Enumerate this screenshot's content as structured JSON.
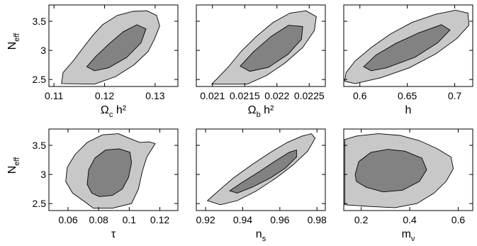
{
  "style": {
    "outer_contour_color": "#c8c8c8",
    "inner_contour_color": "#828282"
  },
  "chart_data": [
    {
      "type": "contour",
      "xlabel": {
        "base": "Ω",
        "sub": "c",
        "rest": " h²"
      },
      "ylabel": {
        "base": "N",
        "sub": "eff"
      },
      "xlim": [
        0.109,
        0.1345
      ],
      "ylim": [
        2.38,
        3.78
      ],
      "xticks": [
        {
          "v": 0.11,
          "label": "0.11"
        },
        {
          "v": 0.12,
          "label": "0.12"
        },
        {
          "v": 0.13,
          "label": "0.13"
        }
      ],
      "yticks": [
        {
          "v": 2.5,
          "label": "2.5"
        },
        {
          "v": 3.0,
          "label": "3"
        },
        {
          "v": 3.5,
          "label": "3.5"
        }
      ],
      "contour_95": [
        [
          0.1115,
          2.43
        ],
        [
          0.1118,
          2.62
        ],
        [
          0.1138,
          2.82
        ],
        [
          0.1158,
          3.05
        ],
        [
          0.1177,
          3.26
        ],
        [
          0.1196,
          3.44
        ],
        [
          0.1225,
          3.6
        ],
        [
          0.1256,
          3.67
        ],
        [
          0.1284,
          3.68
        ],
        [
          0.1303,
          3.6
        ],
        [
          0.1309,
          3.42
        ],
        [
          0.1299,
          3.2
        ],
        [
          0.1286,
          2.98
        ],
        [
          0.1258,
          2.75
        ],
        [
          0.1222,
          2.55
        ],
        [
          0.118,
          2.42
        ]
      ],
      "contour_68": [
        [
          0.1165,
          2.72
        ],
        [
          0.1183,
          2.9
        ],
        [
          0.121,
          3.12
        ],
        [
          0.1237,
          3.32
        ],
        [
          0.1264,
          3.44
        ],
        [
          0.1282,
          3.37
        ],
        [
          0.1272,
          3.13
        ],
        [
          0.1244,
          2.88
        ],
        [
          0.1208,
          2.7
        ],
        [
          0.118,
          2.65
        ]
      ]
    },
    {
      "type": "contour",
      "xlabel": {
        "base": "Ω",
        "sub": "b",
        "rest": " h²"
      },
      "ylabel": null,
      "xlim": [
        0.02075,
        0.02275
      ],
      "ylim": [
        2.38,
        3.78
      ],
      "xticks": [
        {
          "v": 0.021,
          "label": "0.021"
        },
        {
          "v": 0.0215,
          "label": "0.0215"
        },
        {
          "v": 0.022,
          "label": "0.022"
        },
        {
          "v": 0.0225,
          "label": "0.0225"
        }
      ],
      "yticks": [
        {
          "v": 2.5,
          "label": ""
        },
        {
          "v": 3.0,
          "label": ""
        },
        {
          "v": 3.5,
          "label": ""
        }
      ],
      "contour_95": [
        [
          0.02099,
          2.42
        ],
        [
          0.02125,
          2.72
        ],
        [
          0.02145,
          2.99
        ],
        [
          0.02168,
          3.24
        ],
        [
          0.02194,
          3.48
        ],
        [
          0.0222,
          3.64
        ],
        [
          0.02245,
          3.68
        ],
        [
          0.02261,
          3.58
        ],
        [
          0.02258,
          3.34
        ],
        [
          0.0224,
          3.05
        ],
        [
          0.02212,
          2.78
        ],
        [
          0.02184,
          2.57
        ],
        [
          0.02154,
          2.42
        ]
      ],
      "contour_68": [
        [
          0.02143,
          2.73
        ],
        [
          0.02164,
          2.98
        ],
        [
          0.02191,
          3.24
        ],
        [
          0.02218,
          3.43
        ],
        [
          0.0224,
          3.41
        ],
        [
          0.02238,
          3.19
        ],
        [
          0.02217,
          2.93
        ],
        [
          0.02187,
          2.71
        ],
        [
          0.02158,
          2.64
        ]
      ]
    },
    {
      "type": "contour",
      "xlabel": {
        "base": "h",
        "sub": "",
        "rest": ""
      },
      "ylabel": null,
      "xlim": [
        0.583,
        0.719
      ],
      "ylim": [
        2.38,
        3.78
      ],
      "xticks": [
        {
          "v": 0.6,
          "label": "0.6"
        },
        {
          "v": 0.65,
          "label": "0.65"
        },
        {
          "v": 0.7,
          "label": "0.7"
        }
      ],
      "yticks": [
        {
          "v": 2.5,
          "label": ""
        },
        {
          "v": 3.0,
          "label": ""
        },
        {
          "v": 3.5,
          "label": ""
        }
      ],
      "contour_95": [
        [
          0.584,
          2.47
        ],
        [
          0.5855,
          2.62
        ],
        [
          0.595,
          2.82
        ],
        [
          0.612,
          3.05
        ],
        [
          0.632,
          3.28
        ],
        [
          0.655,
          3.48
        ],
        [
          0.68,
          3.62
        ],
        [
          0.701,
          3.69
        ],
        [
          0.714,
          3.64
        ],
        [
          0.715,
          3.43
        ],
        [
          0.702,
          3.2
        ],
        [
          0.68,
          2.94
        ],
        [
          0.652,
          2.7
        ],
        [
          0.622,
          2.53
        ],
        [
          0.595,
          2.43
        ]
      ],
      "contour_68": [
        [
          0.604,
          2.72
        ],
        [
          0.617,
          2.92
        ],
        [
          0.638,
          3.12
        ],
        [
          0.662,
          3.3
        ],
        [
          0.686,
          3.44
        ],
        [
          0.695,
          3.35
        ],
        [
          0.682,
          3.13
        ],
        [
          0.658,
          2.88
        ],
        [
          0.628,
          2.7
        ],
        [
          0.612,
          2.65
        ]
      ]
    },
    {
      "type": "contour",
      "xlabel": {
        "base": "τ",
        "sub": "",
        "rest": ""
      },
      "ylabel": {
        "base": "N",
        "sub": "eff"
      },
      "xlim": [
        0.0475,
        0.1318
      ],
      "ylim": [
        2.38,
        3.78
      ],
      "xticks": [
        {
          "v": 0.06,
          "label": "0.06"
        },
        {
          "v": 0.08,
          "label": "0.08"
        },
        {
          "v": 0.1,
          "label": "0.1"
        },
        {
          "v": 0.12,
          "label": "0.12"
        }
      ],
      "yticks": [
        {
          "v": 2.5,
          "label": "2.5"
        },
        {
          "v": 3.0,
          "label": "3"
        },
        {
          "v": 3.5,
          "label": "3.5"
        }
      ],
      "contour_95": [
        [
          0.0765,
          2.42
        ],
        [
          0.0715,
          2.52
        ],
        [
          0.063,
          2.68
        ],
        [
          0.0585,
          2.88
        ],
        [
          0.0595,
          3.12
        ],
        [
          0.0645,
          3.34
        ],
        [
          0.0725,
          3.55
        ],
        [
          0.0825,
          3.68
        ],
        [
          0.093,
          3.7
        ],
        [
          0.1,
          3.62
        ],
        [
          0.107,
          3.55
        ],
        [
          0.113,
          3.56
        ],
        [
          0.117,
          3.53
        ],
        [
          0.1115,
          3.3
        ],
        [
          0.1085,
          3.05
        ],
        [
          0.106,
          2.75
        ],
        [
          0.1015,
          2.5
        ],
        [
          0.089,
          2.42
        ]
      ],
      "contour_68": [
        [
          0.0725,
          2.83
        ],
        [
          0.0735,
          3.08
        ],
        [
          0.0775,
          3.28
        ],
        [
          0.0845,
          3.42
        ],
        [
          0.0935,
          3.44
        ],
        [
          0.1005,
          3.38
        ],
        [
          0.1015,
          3.2
        ],
        [
          0.0995,
          2.95
        ],
        [
          0.0955,
          2.75
        ],
        [
          0.089,
          2.64
        ],
        [
          0.0805,
          2.62
        ],
        [
          0.0755,
          2.68
        ]
      ]
    },
    {
      "type": "contour",
      "xlabel": {
        "base": "n",
        "sub": "s",
        "rest": ""
      },
      "ylabel": null,
      "xlim": [
        0.915,
        0.9845
      ],
      "ylim": [
        2.38,
        3.78
      ],
      "xticks": [
        {
          "v": 0.92,
          "label": "0.92"
        },
        {
          "v": 0.94,
          "label": "0.94"
        },
        {
          "v": 0.96,
          "label": "0.96"
        },
        {
          "v": 0.98,
          "label": "0.98"
        }
      ],
      "yticks": [
        {
          "v": 2.5,
          "label": ""
        },
        {
          "v": 3.0,
          "label": ""
        },
        {
          "v": 3.5,
          "label": ""
        }
      ],
      "contour_95": [
        [
          0.921,
          2.55
        ],
        [
          0.927,
          2.72
        ],
        [
          0.935,
          2.94
        ],
        [
          0.945,
          3.17
        ],
        [
          0.955,
          3.38
        ],
        [
          0.964,
          3.55
        ],
        [
          0.972,
          3.66
        ],
        [
          0.977,
          3.7
        ],
        [
          0.979,
          3.62
        ],
        [
          0.975,
          3.4
        ],
        [
          0.967,
          3.16
        ],
        [
          0.958,
          2.94
        ],
        [
          0.947,
          2.71
        ],
        [
          0.937,
          2.55
        ],
        [
          0.928,
          2.48
        ]
      ],
      "contour_68": [
        [
          0.933,
          2.72
        ],
        [
          0.94,
          2.87
        ],
        [
          0.949,
          3.05
        ],
        [
          0.957,
          3.22
        ],
        [
          0.965,
          3.38
        ],
        [
          0.969,
          3.42
        ],
        [
          0.969,
          3.3
        ],
        [
          0.963,
          3.11
        ],
        [
          0.955,
          2.94
        ],
        [
          0.945,
          2.78
        ],
        [
          0.937,
          2.68
        ]
      ]
    },
    {
      "type": "contour",
      "xlabel": {
        "base": "m",
        "sub": "ν",
        "rest": ""
      },
      "ylabel": null,
      "xlim": [
        0.128,
        0.66
      ],
      "ylim": [
        2.38,
        3.78
      ],
      "xticks": [
        {
          "v": 0.2,
          "label": "0.2"
        },
        {
          "v": 0.4,
          "label": "0.4"
        },
        {
          "v": 0.6,
          "label": "0.6"
        }
      ],
      "yticks": [
        {
          "v": 2.5,
          "label": ""
        },
        {
          "v": 3.0,
          "label": ""
        },
        {
          "v": 3.5,
          "label": ""
        }
      ],
      "contour_95": [
        [
          0.132,
          2.95
        ],
        [
          0.132,
          3.6
        ],
        [
          0.18,
          3.66
        ],
        [
          0.27,
          3.7
        ],
        [
          0.36,
          3.67
        ],
        [
          0.44,
          3.58
        ],
        [
          0.51,
          3.45
        ],
        [
          0.57,
          3.3
        ],
        [
          0.58,
          3.1
        ],
        [
          0.55,
          2.88
        ],
        [
          0.5,
          2.68
        ],
        [
          0.43,
          2.5
        ],
        [
          0.34,
          2.43
        ],
        [
          0.24,
          2.45
        ],
        [
          0.132,
          2.48
        ]
      ],
      "contour_68": [
        [
          0.175,
          3.0
        ],
        [
          0.19,
          3.22
        ],
        [
          0.24,
          3.38
        ],
        [
          0.31,
          3.43
        ],
        [
          0.38,
          3.4
        ],
        [
          0.45,
          3.28
        ],
        [
          0.47,
          3.08
        ],
        [
          0.44,
          2.88
        ],
        [
          0.37,
          2.73
        ],
        [
          0.29,
          2.7
        ],
        [
          0.22,
          2.78
        ],
        [
          0.18,
          2.88
        ]
      ]
    }
  ]
}
